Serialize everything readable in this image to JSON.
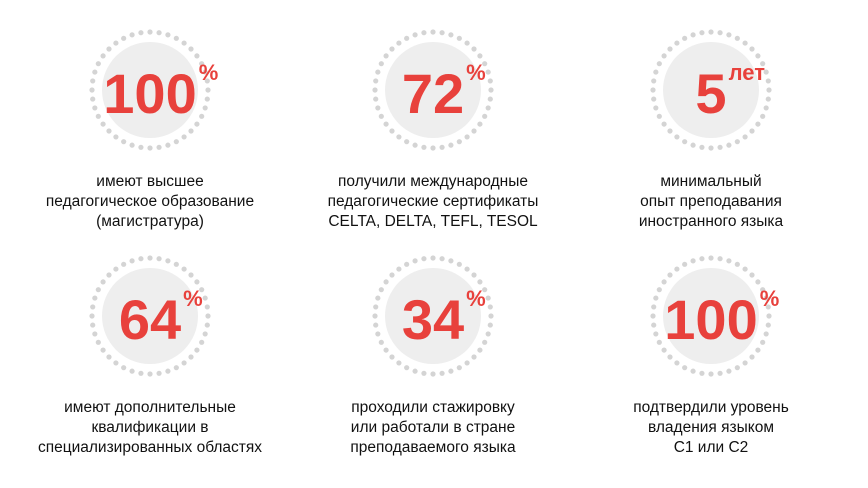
{
  "colors": {
    "accent": "#e8413c",
    "text": "#111111",
    "ring_fill": "#eeeeee",
    "ring_dots": "#d4d4d4"
  },
  "stats": [
    {
      "value": "100",
      "unit": "%",
      "caption_lines": [
        "имеют высшее",
        "педагогическое образование",
        "(магистратура)"
      ]
    },
    {
      "value": "72",
      "unit": "%",
      "caption_lines": [
        "получили международные",
        "педагогические сертификаты",
        "CELTA, DELTA, TEFL, TESOL"
      ]
    },
    {
      "value": "5",
      "unit": "лет",
      "caption_lines": [
        "минимальный",
        "опыт преподавания",
        "иностранного языка"
      ]
    },
    {
      "value": "64",
      "unit": "%",
      "caption_lines": [
        "имеют дополнительные",
        "квалификации в",
        "специализированных областях"
      ]
    },
    {
      "value": "34",
      "unit": "%",
      "caption_lines": [
        "проходили стажировку",
        "или работали в стране",
        "преподаваемого языка"
      ]
    },
    {
      "value": "100",
      "unit": "%",
      "caption_lines": [
        "подтвердили уровень",
        "владения языком",
        "C1 или C2"
      ]
    }
  ]
}
